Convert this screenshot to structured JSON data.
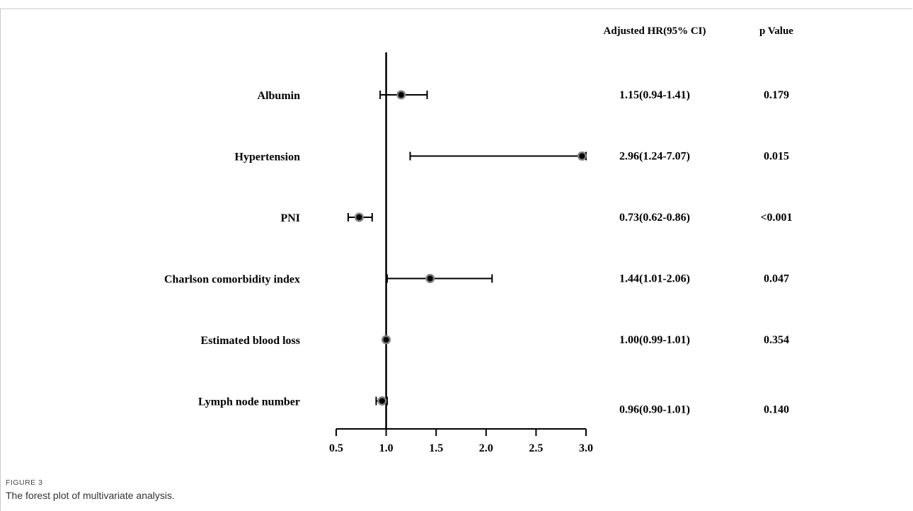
{
  "figure": {
    "label": "FIGURE 3",
    "caption": "The forest plot of multivariate analysis."
  },
  "columns": {
    "hr_header": "Adjusted HR(95% CI)",
    "p_header": "p Value"
  },
  "colors": {
    "ink": "#000000",
    "marker_ring": "#7f7f7f",
    "frame": "#c9c9c9"
  },
  "chart_data": {
    "type": "forest",
    "reference_line": 1.0,
    "xlim": [
      0.5,
      3.0
    ],
    "x_ticks": [
      "0.5",
      "1.0",
      "1.5",
      "2.0",
      "2.5",
      "3.0"
    ],
    "rows": [
      {
        "label": "Albumin",
        "hr": 1.15,
        "lower": 0.94,
        "upper": 1.41,
        "hr_text": "1.15(0.94-1.41)",
        "p_text": "0.179"
      },
      {
        "label": "Hypertension",
        "hr": 2.96,
        "lower": 1.24,
        "upper": 7.07,
        "hr_text": "2.96(1.24-7.07)",
        "p_text": "0.015"
      },
      {
        "label": "PNI",
        "hr": 0.73,
        "lower": 0.62,
        "upper": 0.86,
        "hr_text": "0.73(0.62-0.86)",
        "p_text": "<0.001"
      },
      {
        "label": "Charlson comorbidity index",
        "hr": 1.44,
        "lower": 1.01,
        "upper": 2.06,
        "hr_text": "1.44(1.01-2.06)",
        "p_text": "0.047"
      },
      {
        "label": "Estimated blood loss",
        "hr": 1.0,
        "lower": 0.99,
        "upper": 1.01,
        "hr_text": "1.00(0.99-1.01)",
        "p_text": "0.354"
      },
      {
        "label": "Lymph node number",
        "hr": 0.96,
        "lower": 0.9,
        "upper": 1.01,
        "hr_text": "0.96(0.90-1.01)",
        "p_text": "0.140"
      }
    ]
  }
}
